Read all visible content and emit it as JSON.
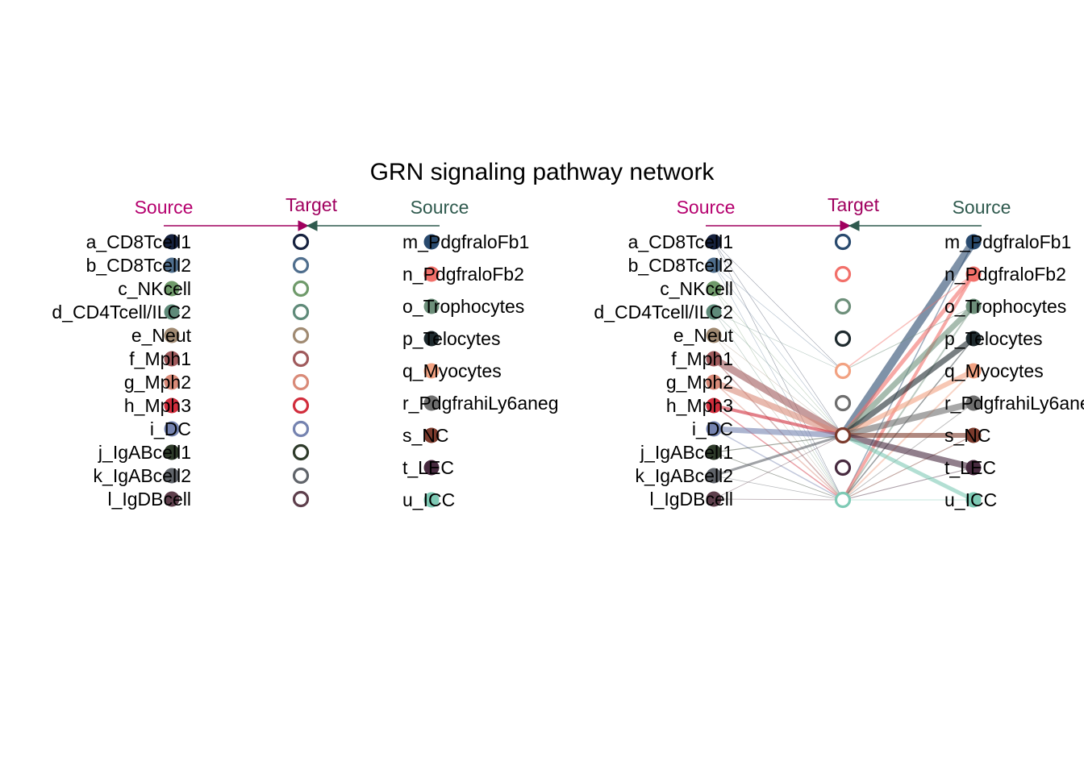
{
  "title": "GRN signaling pathway network",
  "header_labels": {
    "source": "Source",
    "target": "Target"
  },
  "header_colors": {
    "source_left": "#b5006e",
    "source_right": "#2f5a4e",
    "target": "#a0005f"
  },
  "left_cells": [
    {
      "id": "a",
      "name": "a_CD8Tcell1",
      "color": "#16223f"
    },
    {
      "id": "b",
      "name": "b_CD8Tcell2",
      "color": "#4f6e8d"
    },
    {
      "id": "c",
      "name": "c_NKcell",
      "color": "#6f9a6a"
    },
    {
      "id": "d",
      "name": "d_CD4Tcell/ILC2",
      "color": "#5f8a79"
    },
    {
      "id": "e",
      "name": "e_Neut",
      "color": "#a08a72"
    },
    {
      "id": "f",
      "name": "f_Mph1",
      "color": "#a05a5c"
    },
    {
      "id": "g",
      "name": "g_Mph2",
      "color": "#d98a78"
    },
    {
      "id": "h",
      "name": "h_Mph3",
      "color": "#d12d3c"
    },
    {
      "id": "i",
      "name": "i_DC",
      "color": "#7583b0"
    },
    {
      "id": "j",
      "name": "j_IgABcell1",
      "color": "#2e3b2a"
    },
    {
      "id": "k",
      "name": "k_IgABcell2",
      "color": "#60646a"
    },
    {
      "id": "l",
      "name": "l_IgDBcell",
      "color": "#5e3f4c"
    }
  ],
  "right_cells": [
    {
      "id": "m",
      "name": "m_PdgfraloFb1",
      "color": "#294a6e"
    },
    {
      "id": "n",
      "name": "n_PdgfraloFb2",
      "color": "#f2706a"
    },
    {
      "id": "o",
      "name": "o_Trophocytes",
      "color": "#6d8f7a"
    },
    {
      "id": "p",
      "name": "p_Telocytes",
      "color": "#1e2a2e"
    },
    {
      "id": "q",
      "name": "q_Myocytes",
      "color": "#f2a282"
    },
    {
      "id": "r",
      "name": "r_PdgfrahiLy6aneg",
      "color": "#6e6e6e"
    },
    {
      "id": "s",
      "name": "s_NC",
      "color": "#7b3a2c"
    },
    {
      "id": "t",
      "name": "t_LEC",
      "color": "#472a3f"
    },
    {
      "id": "u",
      "name": "u_ICC",
      "color": "#7ecab5"
    }
  ],
  "panels": [
    {
      "name": "left",
      "edges": []
    },
    {
      "name": "right",
      "edges": [
        {
          "from": "a",
          "to": "s",
          "weight": 0.5
        },
        {
          "from": "a",
          "to": "u",
          "weight": 0.5
        },
        {
          "from": "a",
          "to": "q",
          "weight": 0.4
        },
        {
          "from": "b",
          "to": "s",
          "weight": 0.5
        },
        {
          "from": "b",
          "to": "u",
          "weight": 0.5
        },
        {
          "from": "b",
          "to": "q",
          "weight": 0.4
        },
        {
          "from": "c",
          "to": "s",
          "weight": 0.5
        },
        {
          "from": "c",
          "to": "u",
          "weight": 0.5
        },
        {
          "from": "d",
          "to": "s",
          "weight": 0.6
        },
        {
          "from": "d",
          "to": "u",
          "weight": 0.6
        },
        {
          "from": "d",
          "to": "q",
          "weight": 0.4
        },
        {
          "from": "e",
          "to": "s",
          "weight": 0.6
        },
        {
          "from": "e",
          "to": "u",
          "weight": 0.6
        },
        {
          "from": "f",
          "to": "s",
          "weight": 9
        },
        {
          "from": "f",
          "to": "u",
          "weight": 1.5
        },
        {
          "from": "g",
          "to": "s",
          "weight": 8
        },
        {
          "from": "g",
          "to": "u",
          "weight": 1.5
        },
        {
          "from": "h",
          "to": "s",
          "weight": 4
        },
        {
          "from": "h",
          "to": "u",
          "weight": 1.5
        },
        {
          "from": "i",
          "to": "s",
          "weight": 7
        },
        {
          "from": "i",
          "to": "u",
          "weight": 1.5
        },
        {
          "from": "j",
          "to": "s",
          "weight": 1.2
        },
        {
          "from": "j",
          "to": "u",
          "weight": 0.8
        },
        {
          "from": "k",
          "to": "s",
          "weight": 3
        },
        {
          "from": "k",
          "to": "u",
          "weight": 0.8
        },
        {
          "from": "l",
          "to": "s",
          "weight": 0.8
        },
        {
          "from": "l",
          "to": "u",
          "weight": 0.8
        },
        {
          "from": "m",
          "to": "s",
          "weight": 10
        },
        {
          "from": "m",
          "to": "u",
          "weight": 1.5
        },
        {
          "from": "n",
          "to": "s",
          "weight": 5
        },
        {
          "from": "n",
          "to": "u",
          "weight": 4
        },
        {
          "from": "n",
          "to": "q",
          "weight": 1.5
        },
        {
          "from": "o",
          "to": "s",
          "weight": 7
        },
        {
          "from": "o",
          "to": "u",
          "weight": 2
        },
        {
          "from": "o",
          "to": "q",
          "weight": 1
        },
        {
          "from": "p",
          "to": "s",
          "weight": 7
        },
        {
          "from": "p",
          "to": "u",
          "weight": 1.5
        },
        {
          "from": "q",
          "to": "s",
          "weight": 6
        },
        {
          "from": "q",
          "to": "u",
          "weight": 2
        },
        {
          "from": "r",
          "to": "s",
          "weight": 8
        },
        {
          "from": "r",
          "to": "u",
          "weight": 1
        },
        {
          "from": "s",
          "to": "s",
          "weight": 6
        },
        {
          "from": "s",
          "to": "u",
          "weight": 1.2
        },
        {
          "from": "t",
          "to": "s",
          "weight": 8
        },
        {
          "from": "t",
          "to": "u",
          "weight": 1
        },
        {
          "from": "u",
          "to": "s",
          "weight": 5
        },
        {
          "from": "u",
          "to": "u",
          "weight": 1
        }
      ]
    }
  ]
}
